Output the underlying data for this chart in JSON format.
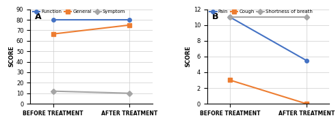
{
  "panel_a": {
    "title": "A",
    "series": [
      {
        "label": "Function",
        "color": "#4472C4",
        "marker": "o",
        "values": [
          80,
          80
        ]
      },
      {
        "label": "General",
        "color": "#ED7D31",
        "marker": "s",
        "values": [
          66.5,
          75
        ]
      },
      {
        "label": "Symptom",
        "color": "#A5A5A5",
        "marker": "D",
        "values": [
          12,
          10
        ]
      }
    ],
    "x_labels": [
      "BEFORE TREATMENT",
      "AFTER TREATMENT"
    ],
    "ylabel": "SCORE",
    "ylim": [
      0,
      90
    ],
    "yticks": [
      0,
      10,
      20,
      30,
      40,
      50,
      60,
      70,
      80,
      90
    ]
  },
  "panel_b": {
    "title": "B",
    "series": [
      {
        "label": "Pain",
        "color": "#4472C4",
        "marker": "o",
        "values": [
          11,
          5.5
        ]
      },
      {
        "label": "Cough",
        "color": "#ED7D31",
        "marker": "s",
        "values": [
          3,
          0
        ]
      },
      {
        "label": "Shortness of breath",
        "color": "#A5A5A5",
        "marker": "D",
        "values": [
          11,
          11
        ]
      }
    ],
    "x_labels": [
      "BEFORE TREATMENT",
      "AFTER TREATMENT"
    ],
    "ylabel": "SCORE",
    "ylim": [
      0,
      12
    ],
    "yticks": [
      0,
      2,
      4,
      6,
      8,
      10,
      12
    ]
  }
}
